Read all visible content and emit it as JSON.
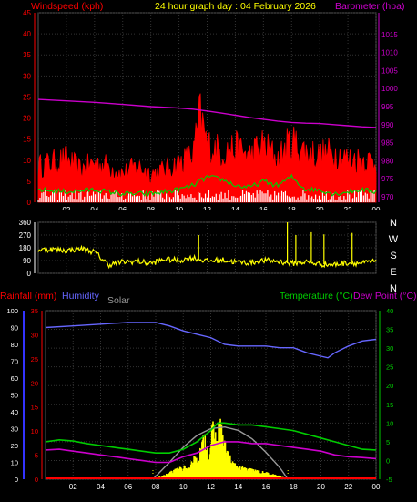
{
  "chart_data": [
    {
      "type": "line",
      "title": "24 hour graph day : 04 February 2026",
      "left_label": "Windspeed (kph)",
      "right_label": "Barometer (hpa)",
      "x_ticks": [
        "02",
        "04",
        "06",
        "08",
        "10",
        "12",
        "14",
        "16",
        "18",
        "20",
        "22",
        "00"
      ],
      "y_left_ticks": [
        "0",
        "5",
        "10",
        "15",
        "20",
        "25",
        "30",
        "35",
        "40",
        "45"
      ],
      "y_left_range": [
        0,
        45
      ],
      "y_right_ticks": [
        "970",
        "975",
        "980",
        "985",
        "990",
        "995",
        "1000",
        "1005",
        "1010",
        "1015"
      ],
      "y_right_range": [
        968.5,
        1021
      ],
      "grid": true,
      "colors": {
        "gust": "#ff0000",
        "speed": "#00cc00",
        "calm": "#ffffff",
        "barometer": "#cc00cc",
        "title": "#ffff00",
        "left_label": "#ff0000",
        "right_label": "#cc00cc"
      },
      "series": [
        {
          "name": "Barometer",
          "axis": "right",
          "x": [
            0,
            2,
            4,
            6,
            8,
            10,
            11,
            12,
            13,
            14,
            15,
            16,
            17,
            18,
            19,
            20,
            21,
            22,
            23,
            24
          ],
          "values": [
            997,
            996.6,
            996.2,
            995.6,
            995,
            994.6,
            994.3,
            993.8,
            993.2,
            992.6,
            992,
            991.5,
            991,
            990.6,
            990.4,
            990.3,
            990,
            989.7,
            989.4,
            989.2
          ]
        },
        {
          "name": "Gust",
          "axis": "left",
          "x": [
            0,
            1,
            2,
            3,
            4,
            5,
            6,
            7,
            8,
            9,
            10,
            11,
            11.5,
            12,
            13,
            14,
            15,
            16,
            17,
            18,
            19,
            20,
            21,
            22,
            23,
            24
          ],
          "values": [
            10,
            11,
            12,
            9,
            11,
            10,
            8,
            10,
            8,
            9,
            11,
            13,
            24,
            16,
            14,
            15,
            13,
            16,
            12,
            17,
            14,
            13,
            14,
            12,
            12,
            11
          ]
        },
        {
          "name": "Speed",
          "axis": "left",
          "x": [
            0,
            2,
            4,
            6,
            8,
            10,
            11,
            12,
            13,
            14,
            15,
            16,
            17,
            18,
            19,
            20,
            21,
            22,
            23,
            24
          ],
          "values": [
            3,
            2.5,
            3,
            2,
            2,
            3,
            4,
            6,
            5.5,
            4,
            3.5,
            5,
            4,
            6,
            3,
            3,
            2,
            2.5,
            3,
            2.5
          ]
        }
      ]
    },
    {
      "type": "scatter",
      "ylabel_ticks": [
        "0",
        "90",
        "180",
        "270",
        "360"
      ],
      "y_range": [
        0,
        360
      ],
      "compass_labels": [
        "N",
        "W",
        "S",
        "E",
        "N"
      ],
      "color": "#ffff00",
      "x": [
        0,
        1,
        2,
        3,
        4,
        5,
        6,
        7,
        8,
        9,
        10,
        11,
        12,
        13,
        14,
        15,
        16,
        17,
        18,
        19,
        20,
        21,
        22,
        23,
        24
      ],
      "values": [
        165,
        170,
        160,
        175,
        150,
        60,
        80,
        85,
        70,
        100,
        90,
        110,
        85,
        95,
        80,
        75,
        90,
        85,
        70,
        80,
        65,
        60,
        75,
        70,
        85
      ],
      "spikes": [
        {
          "x": 11.4,
          "value": 270
        },
        {
          "x": 17.7,
          "value": 360
        },
        {
          "x": 18.3,
          "value": 270
        },
        {
          "x": 19.4,
          "value": 290
        },
        {
          "x": 20.3,
          "value": 275
        },
        {
          "x": 22.3,
          "value": 285
        }
      ]
    },
    {
      "type": "line",
      "labels": {
        "rainfall": "Rainfall (mm)",
        "humidity": "Humidity",
        "solar": "Solar",
        "temperature": "Temperature (°C)",
        "dewpoint": "Dew Point (°C)"
      },
      "colors": {
        "rainfall": "#ff0000",
        "humidity": "#6666ff",
        "solar": "#999999",
        "solar_fill": "#ffff00",
        "temperature": "#00cc00",
        "dewpoint": "#cc00cc",
        "left_axis": "#3333ff",
        "right_axis": "#00cc00"
      },
      "x_ticks": [
        "02",
        "04",
        "06",
        "08",
        "10",
        "12",
        "14",
        "16",
        "18",
        "20",
        "22",
        "00"
      ],
      "y_humidity_ticks": [
        "0",
        "10",
        "20",
        "30",
        "40",
        "50",
        "60",
        "70",
        "80",
        "90",
        "100"
      ],
      "y_humidity_range": [
        0,
        100
      ],
      "y_rain_ticks": [
        "0",
        "5",
        "10",
        "15",
        "20",
        "25",
        "30",
        "35"
      ],
      "y_rain_range": [
        0,
        35
      ],
      "y_temp_ticks": [
        "-5",
        "0",
        "5",
        "10",
        "15",
        "20",
        "25",
        "30",
        "35",
        "40"
      ],
      "y_temp_range": [
        -5,
        40
      ],
      "grid": true,
      "series": [
        {
          "name": "Humidity",
          "axis": "humidity",
          "x": [
            0,
            2,
            4,
            6,
            7,
            8,
            9,
            10,
            11,
            12,
            13,
            14,
            15,
            16,
            17,
            18,
            19,
            20,
            20.5,
            21,
            22,
            23,
            24
          ],
          "values": [
            90,
            91,
            92,
            93,
            93,
            93,
            91,
            88,
            86,
            84,
            80,
            79,
            79,
            79,
            78,
            78,
            75,
            73,
            72,
            75,
            79,
            82,
            83
          ]
        },
        {
          "name": "Temperature",
          "axis": "temp",
          "x": [
            0,
            1,
            2,
            3,
            4,
            5,
            6,
            7,
            8,
            9,
            10,
            11,
            12,
            12.5,
            13,
            14,
            15,
            16,
            17,
            18,
            19,
            20,
            21,
            22,
            23,
            24
          ],
          "values": [
            5,
            5.5,
            5.2,
            4.5,
            4,
            3.5,
            3,
            2.5,
            2,
            2,
            3,
            5,
            8,
            10,
            10,
            9.5,
            9.5,
            9,
            8.5,
            8,
            7,
            6,
            5,
            4,
            3,
            2.8
          ]
        },
        {
          "name": "Dew Point",
          "axis": "temp",
          "x": [
            0,
            1,
            2,
            3,
            4,
            5,
            6,
            7,
            8,
            9,
            10,
            11,
            12,
            13,
            14,
            15,
            16,
            17,
            18,
            19,
            20,
            21,
            22,
            23,
            24
          ],
          "values": [
            2.8,
            3,
            2.5,
            2,
            1.5,
            1,
            0.5,
            0,
            -0.5,
            -0.5,
            1,
            2,
            4,
            5,
            5,
            4.5,
            4.5,
            4,
            3.5,
            3,
            2.5,
            1.5,
            1,
            0.8,
            0.5
          ]
        },
        {
          "name": "Solar envelope",
          "axis": "humidity",
          "x": [
            7.8,
            9,
            10,
            11,
            12,
            13,
            14,
            15,
            16,
            17,
            17.6
          ],
          "values": [
            0,
            10,
            19,
            26,
            30,
            31,
            29,
            24,
            16,
            7,
            0
          ]
        },
        {
          "name": "Solar",
          "axis": "humidity",
          "x": [
            7.8,
            8.5,
            9,
            9.5,
            10,
            10.5,
            10.8,
            11,
            11.3,
            11.6,
            11.9,
            12.1,
            12.4,
            12.7,
            13,
            13.3,
            13.6,
            14,
            14.5,
            15,
            15.5,
            16,
            16.5,
            17,
            17.6
          ],
          "values": [
            0,
            2,
            4,
            6,
            8,
            6,
            17,
            11,
            20,
            28,
            14,
            33,
            26,
            36,
            22,
            16,
            10,
            8,
            7,
            6,
            5,
            4,
            3,
            2,
            0
          ]
        },
        {
          "name": "Rainfall",
          "axis": "rain",
          "x": [
            0,
            24
          ],
          "values": [
            0,
            0
          ]
        }
      ]
    }
  ]
}
